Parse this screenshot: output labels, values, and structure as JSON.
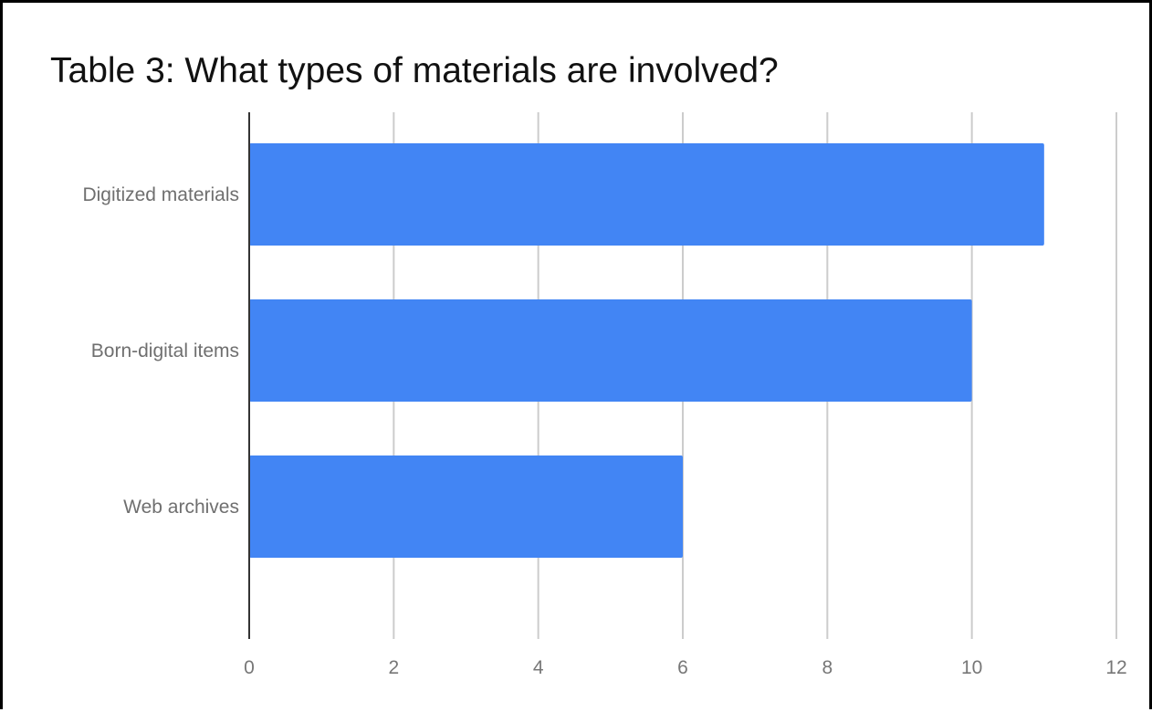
{
  "chart_data": {
    "type": "bar",
    "orientation": "horizontal",
    "title": "Table 3: What types of materials are involved?",
    "categories": [
      "Digitized materials",
      "Born-digital items",
      "Web archives"
    ],
    "values": [
      11,
      10,
      6
    ],
    "xlim": [
      0,
      12
    ],
    "ticks": [
      "0",
      "2",
      "4",
      "6",
      "8",
      "10",
      "12"
    ],
    "grid": true,
    "legend": "none",
    "bar_color": "#4285F4",
    "grid_color": "#cccccc",
    "axis_color": "#333333"
  }
}
